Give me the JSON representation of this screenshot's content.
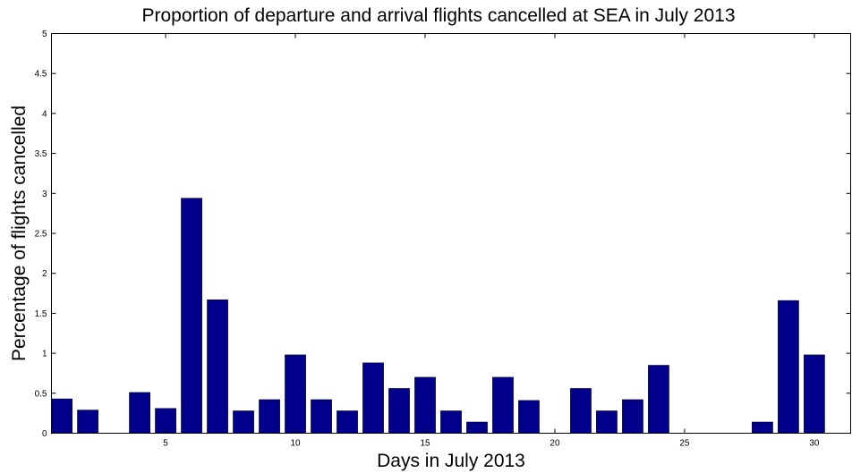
{
  "chart_data": {
    "type": "bar",
    "title": "Proportion of departure and arrival flights cancelled at SEA in July 2013",
    "xlabel": "Days in July 2013",
    "ylabel": "Percentage of flights cancelled",
    "xlim": [
      0.6,
      31.4
    ],
    "ylim": [
      0,
      5
    ],
    "grid": false,
    "bar_color": "#00008b",
    "x_ticks": [
      5,
      10,
      15,
      20,
      25,
      30
    ],
    "y_ticks": [
      0,
      0.5,
      1,
      1.5,
      2,
      2.5,
      3,
      3.5,
      4,
      4.5,
      5
    ],
    "y_tick_labels": [
      "0",
      "0.5",
      "1",
      "1.5",
      "2",
      "2.5",
      "3",
      "3.5",
      "4",
      "4.5",
      "5"
    ],
    "categories": [
      1,
      2,
      3,
      4,
      5,
      6,
      7,
      8,
      9,
      10,
      11,
      12,
      13,
      14,
      15,
      16,
      17,
      18,
      19,
      20,
      21,
      22,
      23,
      24,
      25,
      26,
      27,
      28,
      29,
      30,
      31
    ],
    "values": [
      0.43,
      0.29,
      0,
      0.51,
      0.31,
      2.94,
      1.67,
      0.28,
      0.42,
      0.98,
      0.42,
      0.28,
      0.88,
      0.56,
      0.7,
      0.28,
      0.14,
      0.7,
      0.41,
      0,
      0.56,
      0.28,
      0.42,
      0.85,
      0,
      0,
      0,
      0.14,
      1.66,
      0.98,
      0
    ]
  }
}
